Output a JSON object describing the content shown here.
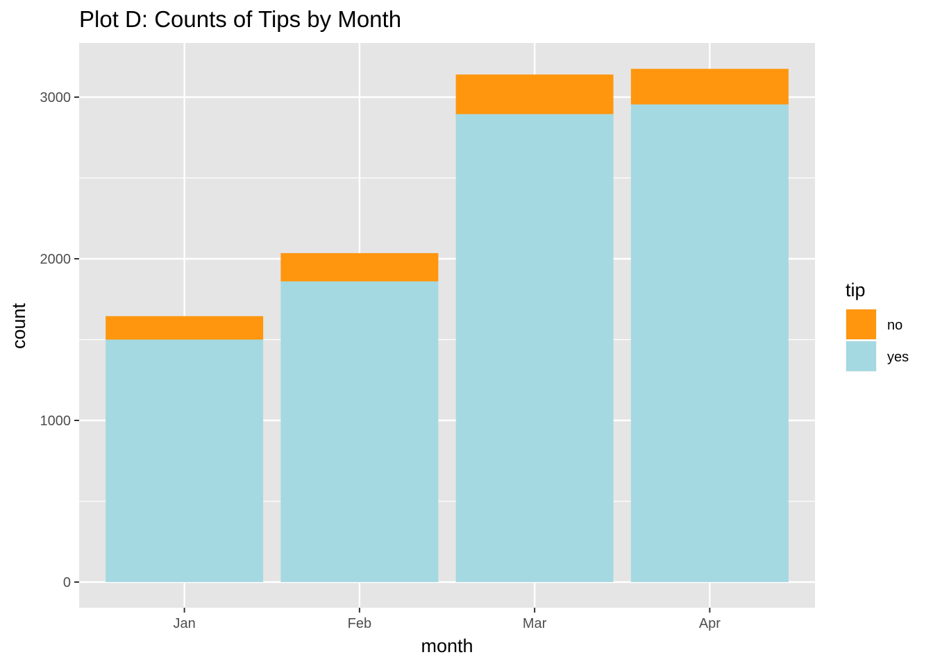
{
  "chart_data": {
    "type": "bar",
    "stacked": true,
    "title": "Plot D: Counts of Tips by Month",
    "xlabel": "month",
    "ylabel": "count",
    "categories": [
      "Jan",
      "Feb",
      "Mar",
      "Apr"
    ],
    "series": [
      {
        "name": "yes",
        "values": [
          1500,
          1860,
          2895,
          2955
        ],
        "color": "#a5d9e1"
      },
      {
        "name": "no",
        "values": [
          145,
          175,
          245,
          220
        ],
        "color": "#ff960d"
      }
    ],
    "ylim": [
      0,
      3300
    ],
    "y_ticks": [
      0,
      1000,
      2000,
      3000
    ],
    "y_tick_labels": [
      "0",
      "1000",
      "2000",
      "3000"
    ],
    "grid": true,
    "legend": {
      "title": "tip",
      "placement": "right",
      "entries": [
        {
          "label": "no",
          "color": "#ff960d"
        },
        {
          "label": "yes",
          "color": "#a5d9e1"
        }
      ]
    },
    "panel_background": "#e5e5e5",
    "grid_color": "#ffffff"
  }
}
